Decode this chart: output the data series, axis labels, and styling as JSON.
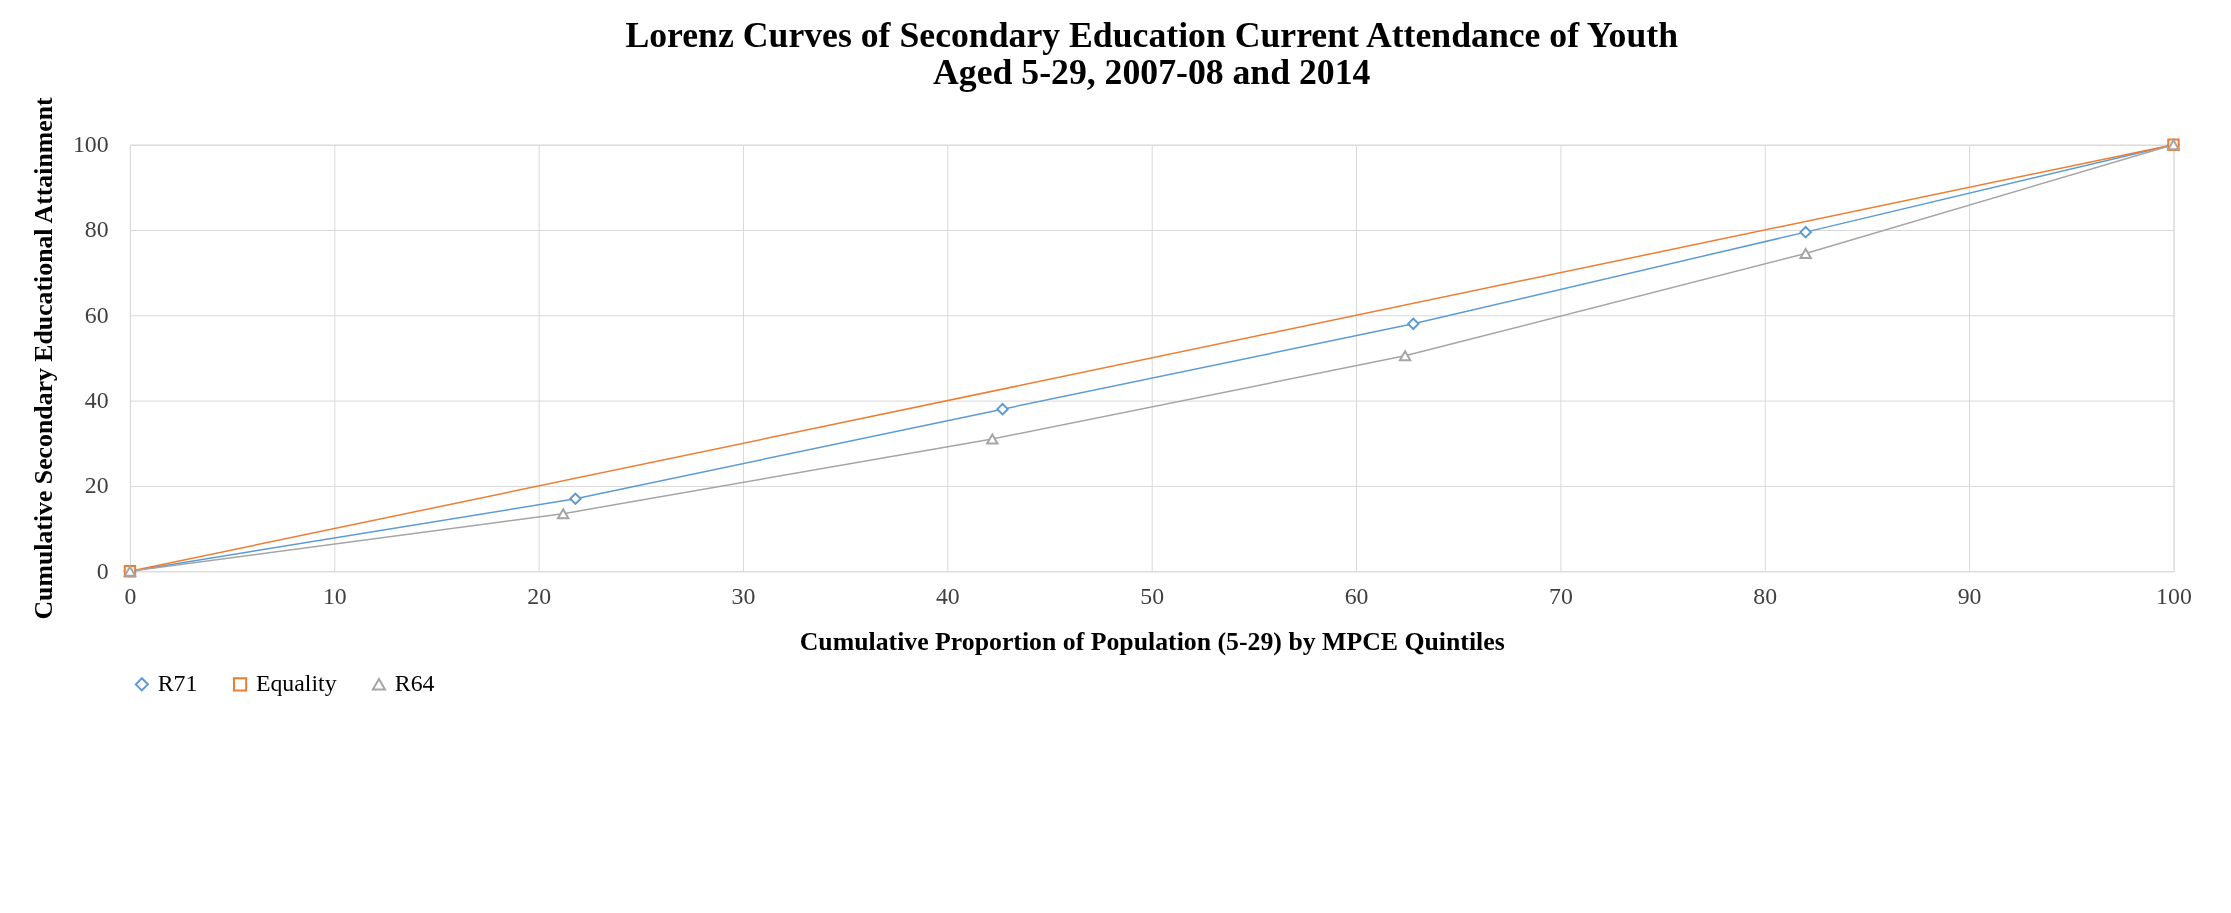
{
  "chart_data": {
    "type": "line",
    "title": "Lorenz Curves of Secondary Education Current Attendance of Youth Aged 5-29, 2007-08 and 2014",
    "xlabel": "Cumulative Proportion of Population (5-29) by MPCE Quintiles",
    "ylabel": "Cumulative Secondary Educational Attainment",
    "series": [
      {
        "name": "R71",
        "color": "#5b9bd5",
        "marker": "diamond",
        "x": [
          0,
          21.8,
          42.7,
          62.8,
          82,
          100
        ],
        "values": [
          0,
          17,
          38,
          58,
          79.5,
          100
        ]
      },
      {
        "name": "Equality",
        "color": "#ed7d31",
        "marker": "square",
        "x": [
          0,
          100
        ],
        "values": [
          0,
          100
        ]
      },
      {
        "name": "R64",
        "color": "#a5a5a5",
        "marker": "triangle",
        "x": [
          0,
          21.2,
          42.2,
          62.4,
          82,
          100
        ],
        "values": [
          0,
          13.5,
          31,
          50.5,
          74.5,
          100
        ]
      }
    ],
    "xlim": [
      0,
      100
    ],
    "xticks": [
      0,
      10,
      20,
      30,
      40,
      50,
      60,
      70,
      80,
      90,
      100
    ],
    "ylim": [
      0,
      100
    ],
    "yticks": [
      0,
      20,
      40,
      60,
      80,
      100
    ],
    "grid": true,
    "legend": "bottom",
    "line_style": "solid"
  }
}
